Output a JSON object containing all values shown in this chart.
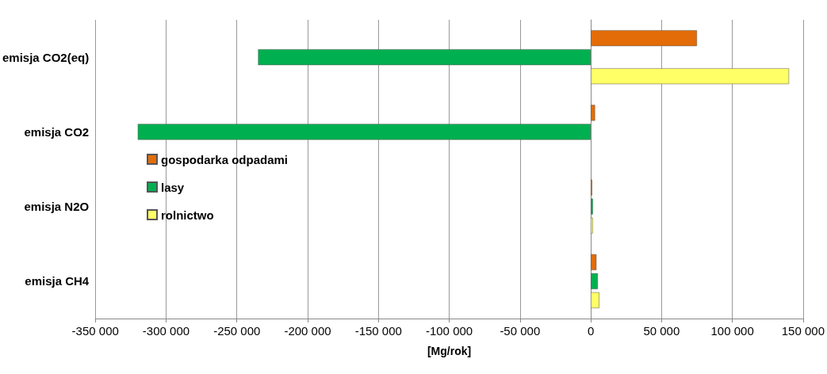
{
  "chart_data": {
    "type": "bar",
    "orientation": "horizontal",
    "xlabel": "[Mg/rok]",
    "categories": [
      "emisja CO2(eq)",
      "emisja CO2",
      "emisja N2O",
      "emisja CH4"
    ],
    "series": [
      {
        "name": "gospodarka odpadami",
        "color": "#e36c09",
        "values": [
          75000,
          3000,
          1000,
          4000
        ]
      },
      {
        "name": "lasy",
        "color": "#00b050",
        "values": [
          -235000,
          -320000,
          1500,
          5000
        ]
      },
      {
        "name": "rolnictwo",
        "color": "#ffff66",
        "values": [
          140000,
          null,
          1500,
          6000
        ]
      }
    ],
    "xlim": [
      -350000,
      150000
    ],
    "xticks": [
      {
        "value": -350000,
        "label": "-350 000"
      },
      {
        "value": -300000,
        "label": "-300 000"
      },
      {
        "value": -250000,
        "label": "-250 000"
      },
      {
        "value": -200000,
        "label": "-200 000"
      },
      {
        "value": -150000,
        "label": "-150 000"
      },
      {
        "value": -100000,
        "label": "-100 000"
      },
      {
        "value": -50000,
        "label": "-50 000"
      },
      0,
      {
        "value": 50000,
        "label": "50 000"
      },
      {
        "value": 100000,
        "label": "100 000"
      },
      {
        "value": 150000,
        "label": "150 000"
      }
    ],
    "grid": "x",
    "legend": "left"
  }
}
